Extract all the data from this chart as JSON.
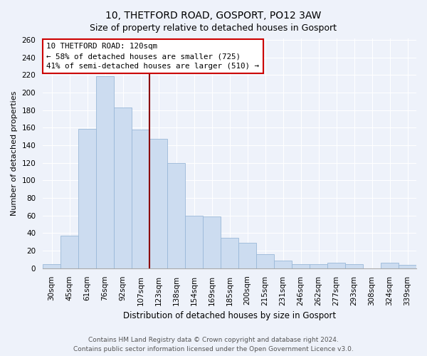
{
  "title": "10, THETFORD ROAD, GOSPORT, PO12 3AW",
  "subtitle": "Size of property relative to detached houses in Gosport",
  "xlabel": "Distribution of detached houses by size in Gosport",
  "ylabel": "Number of detached properties",
  "categories": [
    "30sqm",
    "45sqm",
    "61sqm",
    "76sqm",
    "92sqm",
    "107sqm",
    "123sqm",
    "138sqm",
    "154sqm",
    "169sqm",
    "185sqm",
    "200sqm",
    "215sqm",
    "231sqm",
    "246sqm",
    "262sqm",
    "277sqm",
    "293sqm",
    "308sqm",
    "324sqm",
    "339sqm"
  ],
  "values": [
    5,
    37,
    159,
    219,
    183,
    158,
    147,
    120,
    60,
    59,
    35,
    29,
    16,
    9,
    5,
    5,
    6,
    5,
    0,
    6,
    4
  ],
  "bar_color": "#ccdcf0",
  "bar_edge_color": "#9ab8d8",
  "vline_color": "#8b0000",
  "annotation_line1": "10 THETFORD ROAD: 120sqm",
  "annotation_line2": "← 58% of detached houses are smaller (725)",
  "annotation_line3": "41% of semi-detached houses are larger (510) →",
  "annotation_box_color": "#ffffff",
  "annotation_box_edge": "#cc0000",
  "ylim": [
    0,
    262
  ],
  "yticks": [
    0,
    20,
    40,
    60,
    80,
    100,
    120,
    140,
    160,
    180,
    200,
    220,
    240,
    260
  ],
  "footer_line1": "Contains HM Land Registry data © Crown copyright and database right 2024.",
  "footer_line2": "Contains public sector information licensed under the Open Government Licence v3.0.",
  "bg_color": "#eef2fa",
  "grid_color": "#ffffff",
  "title_fontsize": 10,
  "subtitle_fontsize": 9,
  "ylabel_fontsize": 8,
  "xlabel_fontsize": 8.5,
  "tick_fontsize": 7.5,
  "footer_fontsize": 6.5
}
